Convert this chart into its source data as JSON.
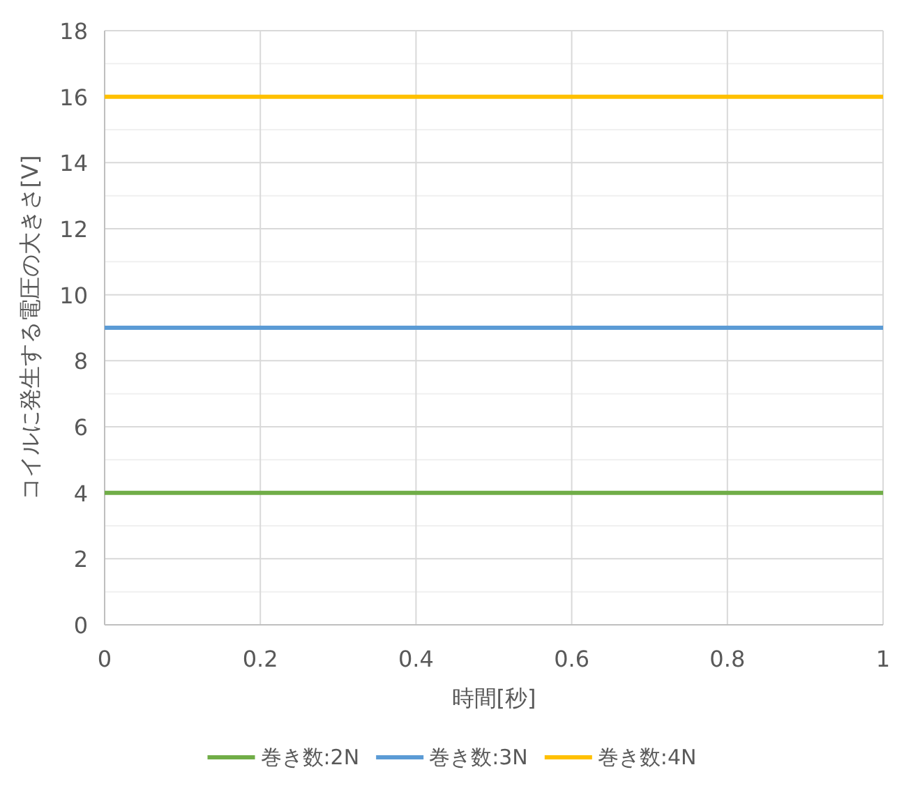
{
  "chart_data": {
    "type": "line",
    "xlabel": "時間[秒]",
    "ylabel": "コイルに発生する電圧の大きさ[V]",
    "x": [
      0,
      1
    ],
    "series": [
      {
        "name": "巻き数:2N",
        "color": "#70ad47",
        "values": [
          4,
          4
        ]
      },
      {
        "name": "巻き数:3N",
        "color": "#5b9bd5",
        "values": [
          9,
          9
        ]
      },
      {
        "name": "巻き数:4N",
        "color": "#ffc000",
        "values": [
          16,
          16
        ]
      }
    ],
    "xlim": [
      0,
      1
    ],
    "ylim": [
      0,
      18
    ],
    "xticks": [
      0,
      0.2,
      0.4,
      0.6,
      0.8,
      1
    ],
    "yticks": [
      0,
      {
        "value": 1,
        "label": null
      },
      2,
      {
        "value": 3,
        "label": null
      },
      4,
      {
        "value": 5,
        "label": null
      },
      6,
      {
        "value": 7,
        "label": null
      },
      8,
      {
        "value": 9,
        "label": null
      },
      10,
      {
        "value": 11,
        "label": null
      },
      12,
      {
        "value": 13,
        "label": null
      },
      14,
      {
        "value": 15,
        "label": null
      },
      16,
      {
        "value": 17,
        "label": null
      },
      18
    ],
    "grid": true,
    "legend": "bottom"
  }
}
